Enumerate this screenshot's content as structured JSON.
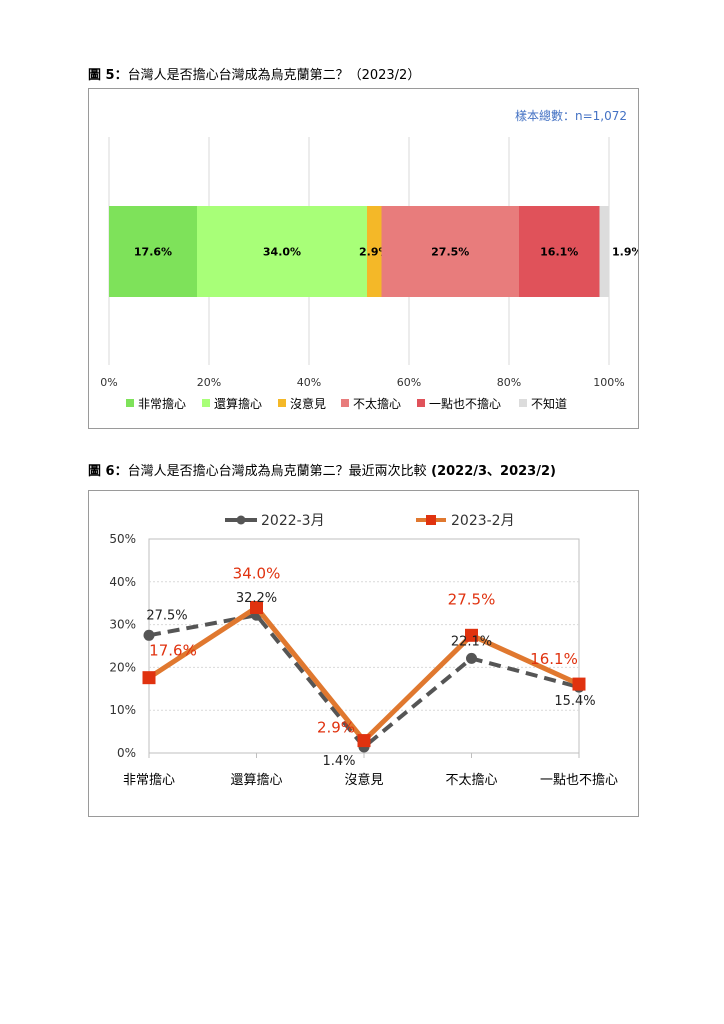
{
  "figure5": {
    "label": "圖 5：",
    "title": "台灣人是否擔心台灣成為烏克蘭第二？（2023/2）",
    "sample_note": "樣本總數：n=1,072",
    "colors": [
      "#7ee25a",
      "#a8ff78",
      "#f4b828",
      "#e87c7c",
      "#e0525a",
      "#dcdcdc"
    ],
    "chart_data": {
      "type": "bar",
      "orientation": "horizontal-stacked",
      "categories": [
        "非常擔心",
        "還算擔心",
        "沒意見",
        "不太擔心",
        "一點也不擔心",
        "不知道"
      ],
      "values": [
        17.6,
        34.0,
        2.9,
        27.5,
        16.1,
        1.9
      ],
      "value_labels": [
        "17.6%",
        "34.0%",
        "2.9%",
        "27.5%",
        "16.1%",
        "1.9%"
      ],
      "xlim": [
        0,
        100
      ],
      "x_ticks": [
        "0%",
        "20%",
        "40%",
        "60%",
        "80%",
        "100%"
      ],
      "grid": true,
      "legend": "bottom"
    }
  },
  "figure6": {
    "label": "圖 6：",
    "title": "台灣人是否擔心台灣成為烏克蘭第二？最近兩次比較",
    "title_suffix": "(2022/3、2023/2)",
    "chart_data": {
      "type": "line",
      "categories": [
        "非常擔心",
        "還算擔心",
        "沒意見",
        "不太擔心",
        "一點也不擔心"
      ],
      "series": [
        {
          "name": "2022-3月",
          "values": [
            27.5,
            32.2,
            1.4,
            22.1,
            15.4
          ],
          "labels": [
            "27.5%",
            "32.2%",
            "1.4%",
            "22.1%",
            "15.4%"
          ],
          "color": "#555555"
        },
        {
          "name": "2023-2月",
          "values": [
            17.6,
            34.0,
            2.9,
            27.5,
            16.1
          ],
          "labels": [
            "17.6%",
            "34.0%",
            "2.9%",
            "27.5%",
            "16.1%"
          ],
          "color": "#e0782f"
        }
      ],
      "marker_color_2023": "#e0320f",
      "label_color_2023": "#e0320f",
      "ylim": [
        0,
        50
      ],
      "y_ticks": [
        "0%",
        "10%",
        "20%",
        "30%",
        "40%",
        "50%"
      ],
      "grid": true,
      "legend": "top"
    }
  }
}
